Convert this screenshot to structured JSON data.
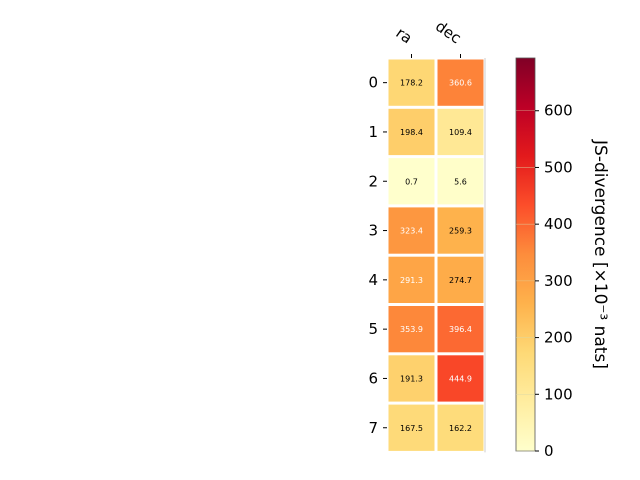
{
  "chart_data": {
    "type": "heatmap",
    "columns": [
      "ra",
      "dec"
    ],
    "rows": [
      "0",
      "1",
      "2",
      "3",
      "4",
      "5",
      "6",
      "7"
    ],
    "values": [
      [
        178.2,
        360.6
      ],
      [
        198.4,
        109.4
      ],
      [
        0.7,
        5.6
      ],
      [
        323.4,
        259.3
      ],
      [
        291.3,
        274.7
      ],
      [
        353.9,
        396.4
      ],
      [
        191.3,
        444.9
      ],
      [
        167.5,
        162.2
      ]
    ],
    "colorbar": {
      "label": "JS-divergence [×10⁻³ nats]",
      "vmin": 0,
      "vmax": 693,
      "ticks": [
        0,
        100,
        200,
        300,
        400,
        500,
        600
      ],
      "colormap": "YlOrRd",
      "colors": [
        "#ffffcc",
        "#ffeda0",
        "#fed976",
        "#feb24c",
        "#fd8d3c",
        "#fc4e2a",
        "#e31a1c",
        "#bd0026",
        "#800026"
      ]
    },
    "grid": false
  }
}
